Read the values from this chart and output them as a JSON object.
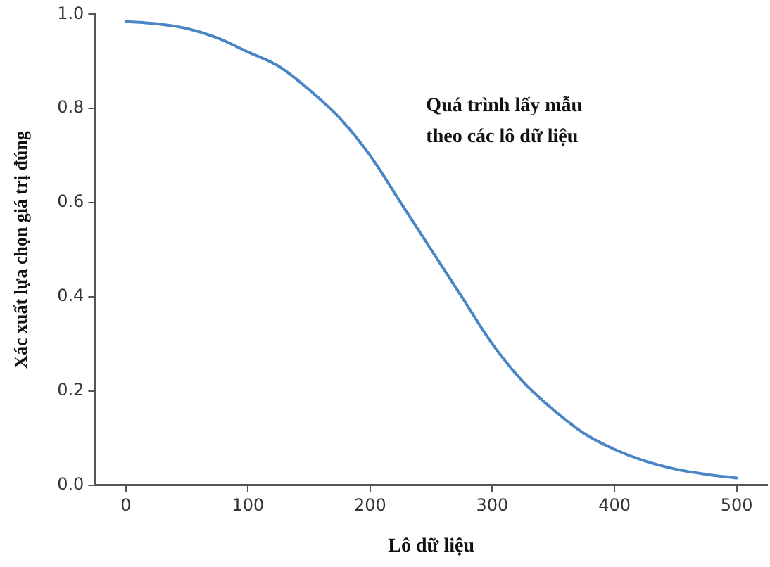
{
  "chart_data": {
    "type": "line",
    "xlabel": "Lô dữ liệu",
    "ylabel": "Xác xuất lựa chọn giá trị đúng",
    "annotations": [
      "Quá trình lấy mẫu\ntheo các lô dữ liệu"
    ],
    "x": [
      0,
      25,
      50,
      75,
      100,
      125,
      150,
      175,
      200,
      225,
      250,
      275,
      300,
      325,
      350,
      375,
      400,
      425,
      450,
      475,
      500
    ],
    "series": [
      {
        "color": "#4a86c5",
        "values": [
          0.985,
          0.98,
          0.97,
          0.95,
          0.92,
          0.89,
          0.84,
          0.78,
          0.7,
          0.6,
          0.5,
          0.4,
          0.3,
          0.22,
          0.16,
          0.11,
          0.076,
          0.051,
          0.034,
          0.023,
          0.015
        ]
      }
    ],
    "xlim": [
      -25,
      525
    ],
    "xticks": [
      0,
      100,
      200,
      300,
      400,
      500
    ],
    "ylim": [
      0,
      1
    ],
    "yticks": [
      {
        "value": 0,
        "label": "0.0"
      },
      {
        "value": 0.2,
        "label": "0.2"
      },
      {
        "value": 0.4,
        "label": "0.4"
      },
      {
        "value": 0.6,
        "label": "0.6"
      },
      {
        "value": 0.8,
        "label": "0.8"
      },
      {
        "value": 1,
        "label": "1.0"
      }
    ],
    "grid": false,
    "legend": false,
    "marker": "none",
    "line_style": "solid"
  }
}
